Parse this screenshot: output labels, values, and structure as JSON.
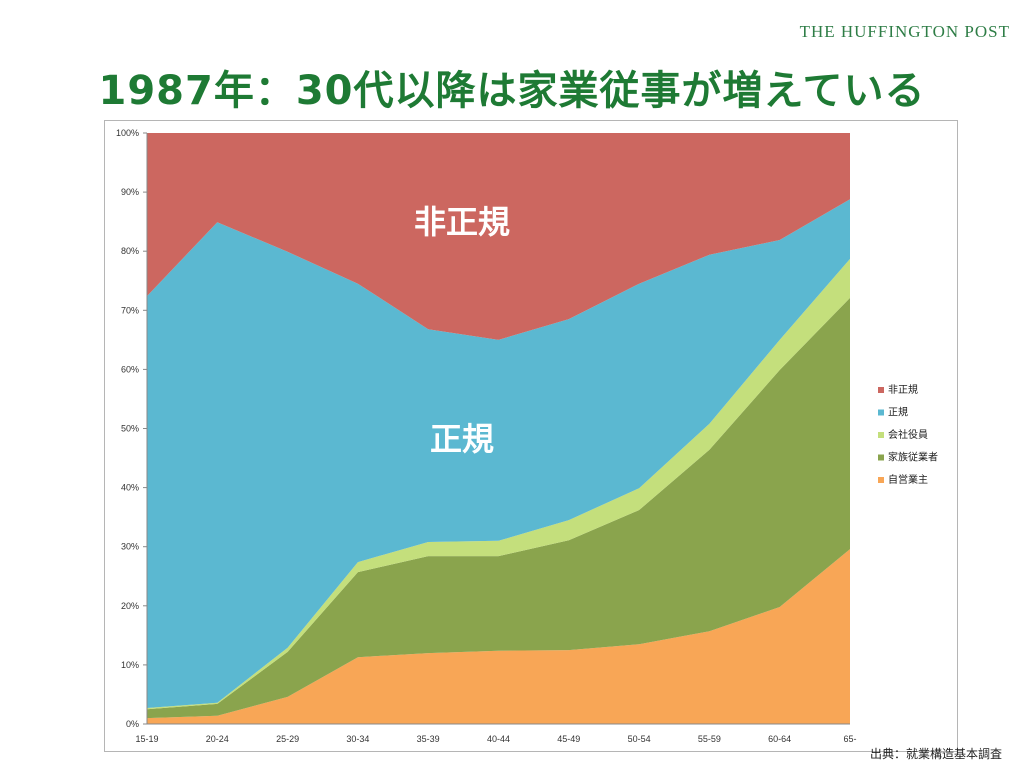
{
  "brand": "THE HUFFINGTON POST",
  "title": "1987年：30代以降は家業従事が増えている",
  "source": "出典：就業構造基本調査",
  "chart_data": {
    "type": "area",
    "stacked": "percent",
    "categories": [
      "15-19",
      "20-24",
      "25-29",
      "30-34",
      "35-39",
      "40-44",
      "45-49",
      "50-54",
      "55-59",
      "60-64",
      "65-"
    ],
    "ylim": [
      0,
      100
    ],
    "yticks": [
      "0%",
      "10%",
      "20%",
      "30%",
      "40%",
      "50%",
      "60%",
      "70%",
      "80%",
      "90%",
      "100%"
    ],
    "legend_position": "right",
    "series": [
      {
        "name": "自営業主",
        "color": "#f8a656",
        "values": [
          1.0,
          1.4,
          4.6,
          11.3,
          12.0,
          12.4,
          12.5,
          13.5,
          15.7,
          19.8,
          29.6
        ]
      },
      {
        "name": "家族従業者",
        "color": "#8aa44d",
        "values": [
          1.5,
          2.0,
          7.6,
          14.4,
          16.4,
          16.0,
          18.6,
          22.7,
          30.7,
          40.1,
          42.5
        ]
      },
      {
        "name": "会社役員",
        "color": "#c4df7c",
        "values": [
          0.2,
          0.2,
          0.7,
          1.7,
          2.4,
          2.6,
          3.4,
          3.7,
          4.4,
          5.1,
          6.6
        ]
      },
      {
        "name": "正規",
        "color": "#5bb8d1",
        "values": [
          69.7,
          81.3,
          67.0,
          47.1,
          36.0,
          34.0,
          34.0,
          34.6,
          28.6,
          16.9,
          10.1
        ]
      },
      {
        "name": "非正規",
        "color": "#cc6760",
        "values": [
          27.6,
          15.1,
          20.1,
          25.5,
          33.2,
          35.0,
          31.5,
          25.5,
          20.6,
          18.1,
          11.2
        ]
      }
    ],
    "annotations": [
      "非正規",
      "正規"
    ]
  }
}
